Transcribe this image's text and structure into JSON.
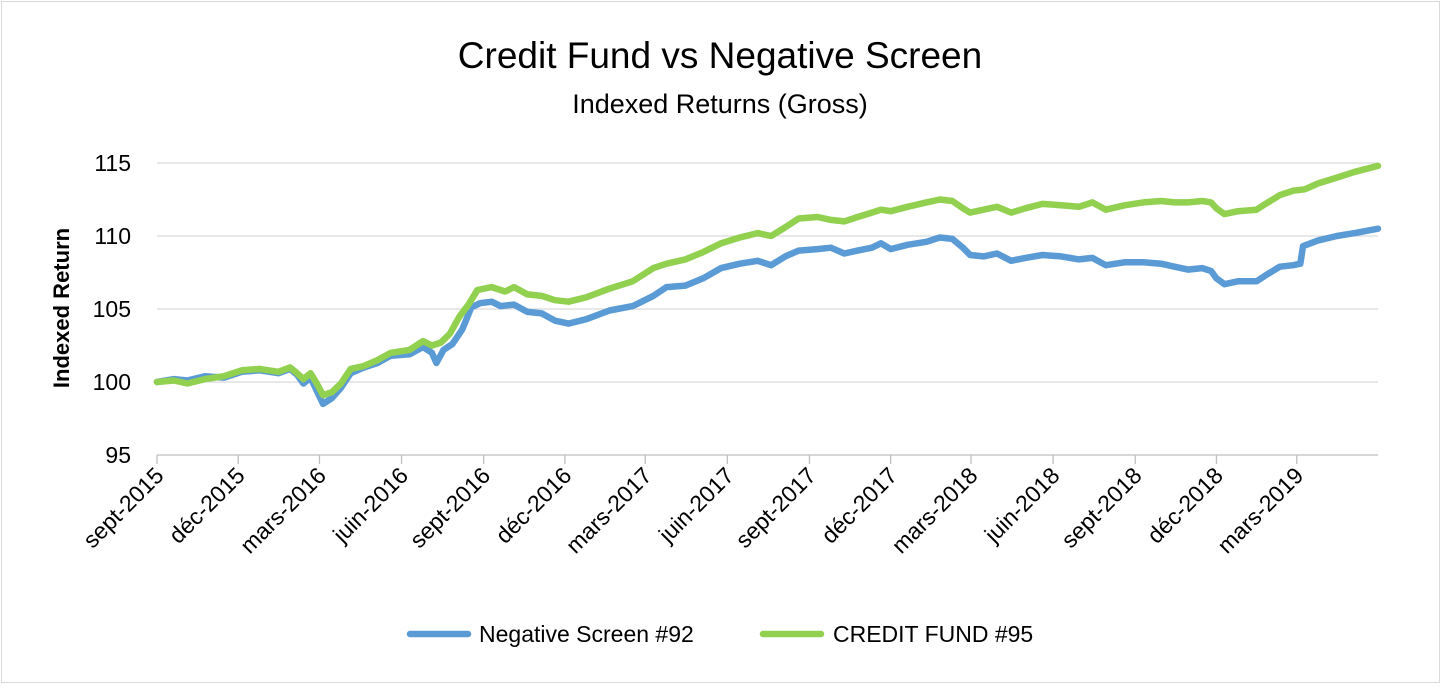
{
  "chart_data": {
    "type": "line",
    "title": "Credit Fund vs Negative Screen",
    "subtitle": "Indexed Returns (Gross)",
    "xlabel": "",
    "ylabel": "Indexed Return",
    "ylim": [
      95,
      115
    ],
    "yticks": [
      95,
      100,
      105,
      110,
      115
    ],
    "xlim": [
      "2015-09-01",
      "2019-05-31"
    ],
    "xticks": [
      {
        "date": "2015-09-01",
        "label": "sept-2015"
      },
      {
        "date": "2015-12-01",
        "label": "déc-2015"
      },
      {
        "date": "2016-03-01",
        "label": "mars-2016"
      },
      {
        "date": "2016-06-01",
        "label": "juin-2016"
      },
      {
        "date": "2016-09-01",
        "label": "sept-2016"
      },
      {
        "date": "2016-12-01",
        "label": "déc-2016"
      },
      {
        "date": "2017-03-01",
        "label": "mars-2017"
      },
      {
        "date": "2017-06-01",
        "label": "juin-2017"
      },
      {
        "date": "2017-09-01",
        "label": "sept-2017"
      },
      {
        "date": "2017-12-01",
        "label": "déc-2017"
      },
      {
        "date": "2018-03-01",
        "label": "mars-2018"
      },
      {
        "date": "2018-06-01",
        "label": "juin-2018"
      },
      {
        "date": "2018-09-01",
        "label": "sept-2018"
      },
      {
        "date": "2018-12-01",
        "label": "déc-2018"
      },
      {
        "date": "2019-03-01",
        "label": "mars-2019"
      }
    ],
    "grid": "horizontal",
    "legend": "bottom",
    "colors": {
      "negative_screen": "#5b9bd5",
      "credit_fund": "#92d050",
      "grid": "#d9d9d9",
      "axis": "#bfbfbf",
      "border": "#d9d9d9"
    },
    "series": [
      {
        "name": "Negative Screen #92",
        "color": "#5b9bd5",
        "points": [
          [
            "2015-09-01",
            100.0
          ],
          [
            "2015-09-20",
            100.2
          ],
          [
            "2015-10-05",
            100.1
          ],
          [
            "2015-10-25",
            100.4
          ],
          [
            "2015-11-15",
            100.3
          ],
          [
            "2015-12-05",
            100.7
          ],
          [
            "2015-12-25",
            100.8
          ],
          [
            "2016-01-15",
            100.6
          ],
          [
            "2016-01-28",
            100.9
          ],
          [
            "2016-02-05",
            100.5
          ],
          [
            "2016-02-12",
            99.9
          ],
          [
            "2016-02-20",
            100.3
          ],
          [
            "2016-02-27",
            99.4
          ],
          [
            "2016-03-05",
            98.5
          ],
          [
            "2016-03-15",
            98.9
          ],
          [
            "2016-03-25",
            99.6
          ],
          [
            "2016-04-05",
            100.6
          ],
          [
            "2016-04-20",
            101.0
          ],
          [
            "2016-05-05",
            101.3
          ],
          [
            "2016-05-20",
            101.8
          ],
          [
            "2016-06-10",
            101.9
          ],
          [
            "2016-06-25",
            102.4
          ],
          [
            "2016-07-05",
            102.0
          ],
          [
            "2016-07-10",
            101.3
          ],
          [
            "2016-07-18",
            102.2
          ],
          [
            "2016-07-28",
            102.6
          ],
          [
            "2016-08-08",
            103.6
          ],
          [
            "2016-08-18",
            105.1
          ],
          [
            "2016-08-28",
            105.4
          ],
          [
            "2016-09-10",
            105.5
          ],
          [
            "2016-09-20",
            105.2
          ],
          [
            "2016-10-05",
            105.3
          ],
          [
            "2016-10-20",
            104.8
          ],
          [
            "2016-11-05",
            104.7
          ],
          [
            "2016-11-20",
            104.2
          ],
          [
            "2016-12-05",
            104.0
          ],
          [
            "2016-12-25",
            104.3
          ],
          [
            "2017-01-20",
            104.9
          ],
          [
            "2017-02-15",
            105.2
          ],
          [
            "2017-03-10",
            105.9
          ],
          [
            "2017-03-25",
            106.5
          ],
          [
            "2017-04-15",
            106.6
          ],
          [
            "2017-05-05",
            107.1
          ],
          [
            "2017-05-25",
            107.8
          ],
          [
            "2017-06-15",
            108.1
          ],
          [
            "2017-07-05",
            108.3
          ],
          [
            "2017-07-20",
            108.0
          ],
          [
            "2017-08-05",
            108.6
          ],
          [
            "2017-08-20",
            109.0
          ],
          [
            "2017-09-10",
            109.1
          ],
          [
            "2017-09-25",
            109.2
          ],
          [
            "2017-10-10",
            108.8
          ],
          [
            "2017-10-25",
            109.0
          ],
          [
            "2017-11-10",
            109.2
          ],
          [
            "2017-11-20",
            109.5
          ],
          [
            "2017-12-01",
            109.1
          ],
          [
            "2017-12-20",
            109.4
          ],
          [
            "2018-01-10",
            109.6
          ],
          [
            "2018-01-25",
            109.9
          ],
          [
            "2018-02-08",
            109.8
          ],
          [
            "2018-02-20",
            109.2
          ],
          [
            "2018-02-28",
            108.7
          ],
          [
            "2018-03-15",
            108.6
          ],
          [
            "2018-03-30",
            108.8
          ],
          [
            "2018-04-15",
            108.3
          ],
          [
            "2018-05-01",
            108.5
          ],
          [
            "2018-05-20",
            108.7
          ],
          [
            "2018-06-10",
            108.6
          ],
          [
            "2018-06-30",
            108.4
          ],
          [
            "2018-07-15",
            108.5
          ],
          [
            "2018-07-30",
            108.0
          ],
          [
            "2018-08-20",
            108.2
          ],
          [
            "2018-09-10",
            108.2
          ],
          [
            "2018-09-30",
            108.1
          ],
          [
            "2018-10-15",
            107.9
          ],
          [
            "2018-10-30",
            107.7
          ],
          [
            "2018-11-15",
            107.8
          ],
          [
            "2018-11-25",
            107.6
          ],
          [
            "2018-12-01",
            107.1
          ],
          [
            "2018-12-10",
            106.7
          ],
          [
            "2018-12-25",
            106.9
          ],
          [
            "2019-01-15",
            106.9
          ],
          [
            "2019-01-25",
            107.3
          ],
          [
            "2019-02-10",
            107.9
          ],
          [
            "2019-02-25",
            108.0
          ],
          [
            "2019-03-05",
            108.1
          ],
          [
            "2019-03-08",
            109.3
          ],
          [
            "2019-03-25",
            109.7
          ],
          [
            "2019-04-15",
            110.0
          ],
          [
            "2019-05-05",
            110.2
          ],
          [
            "2019-05-31",
            110.5
          ]
        ]
      },
      {
        "name": "CREDIT FUND #95",
        "color": "#92d050",
        "points": [
          [
            "2015-09-01",
            100.0
          ],
          [
            "2015-09-20",
            100.1
          ],
          [
            "2015-10-05",
            99.9
          ],
          [
            "2015-10-25",
            100.2
          ],
          [
            "2015-11-15",
            100.4
          ],
          [
            "2015-12-05",
            100.8
          ],
          [
            "2015-12-25",
            100.9
          ],
          [
            "2016-01-15",
            100.7
          ],
          [
            "2016-01-28",
            101.0
          ],
          [
            "2016-02-05",
            100.6
          ],
          [
            "2016-02-12",
            100.2
          ],
          [
            "2016-02-20",
            100.6
          ],
          [
            "2016-02-27",
            99.9
          ],
          [
            "2016-03-05",
            99.1
          ],
          [
            "2016-03-15",
            99.3
          ],
          [
            "2016-03-25",
            99.9
          ],
          [
            "2016-04-05",
            100.9
          ],
          [
            "2016-04-20",
            101.1
          ],
          [
            "2016-05-05",
            101.5
          ],
          [
            "2016-05-20",
            102.0
          ],
          [
            "2016-06-10",
            102.2
          ],
          [
            "2016-06-25",
            102.8
          ],
          [
            "2016-07-05",
            102.5
          ],
          [
            "2016-07-15",
            102.7
          ],
          [
            "2016-07-25",
            103.3
          ],
          [
            "2016-08-05",
            104.5
          ],
          [
            "2016-08-15",
            105.3
          ],
          [
            "2016-08-25",
            106.3
          ],
          [
            "2016-09-10",
            106.5
          ],
          [
            "2016-09-25",
            106.2
          ],
          [
            "2016-10-05",
            106.5
          ],
          [
            "2016-10-20",
            106.0
          ],
          [
            "2016-11-05",
            105.9
          ],
          [
            "2016-11-20",
            105.6
          ],
          [
            "2016-12-05",
            105.5
          ],
          [
            "2016-12-25",
            105.8
          ],
          [
            "2017-01-20",
            106.4
          ],
          [
            "2017-02-15",
            106.9
          ],
          [
            "2017-03-10",
            107.8
          ],
          [
            "2017-03-25",
            108.1
          ],
          [
            "2017-04-15",
            108.4
          ],
          [
            "2017-05-05",
            108.9
          ],
          [
            "2017-05-25",
            109.5
          ],
          [
            "2017-06-15",
            109.9
          ],
          [
            "2017-07-05",
            110.2
          ],
          [
            "2017-07-20",
            110.0
          ],
          [
            "2017-08-05",
            110.6
          ],
          [
            "2017-08-20",
            111.2
          ],
          [
            "2017-09-10",
            111.3
          ],
          [
            "2017-09-25",
            111.1
          ],
          [
            "2017-10-10",
            111.0
          ],
          [
            "2017-10-25",
            111.3
          ],
          [
            "2017-11-10",
            111.6
          ],
          [
            "2017-11-20",
            111.8
          ],
          [
            "2017-12-01",
            111.7
          ],
          [
            "2017-12-20",
            112.0
          ],
          [
            "2018-01-10",
            112.3
          ],
          [
            "2018-01-25",
            112.5
          ],
          [
            "2018-02-08",
            112.4
          ],
          [
            "2018-02-20",
            111.9
          ],
          [
            "2018-02-28",
            111.6
          ],
          [
            "2018-03-15",
            111.8
          ],
          [
            "2018-03-30",
            112.0
          ],
          [
            "2018-04-15",
            111.6
          ],
          [
            "2018-05-01",
            111.9
          ],
          [
            "2018-05-20",
            112.2
          ],
          [
            "2018-06-10",
            112.1
          ],
          [
            "2018-06-30",
            112.0
          ],
          [
            "2018-07-15",
            112.3
          ],
          [
            "2018-07-30",
            111.8
          ],
          [
            "2018-08-20",
            112.1
          ],
          [
            "2018-09-10",
            112.3
          ],
          [
            "2018-09-30",
            112.4
          ],
          [
            "2018-10-15",
            112.3
          ],
          [
            "2018-10-30",
            112.3
          ],
          [
            "2018-11-15",
            112.4
          ],
          [
            "2018-11-25",
            112.3
          ],
          [
            "2018-12-01",
            111.9
          ],
          [
            "2018-12-10",
            111.5
          ],
          [
            "2018-12-25",
            111.7
          ],
          [
            "2019-01-15",
            111.8
          ],
          [
            "2019-01-25",
            112.2
          ],
          [
            "2019-02-10",
            112.8
          ],
          [
            "2019-02-25",
            113.1
          ],
          [
            "2019-03-10",
            113.2
          ],
          [
            "2019-03-25",
            113.6
          ],
          [
            "2019-04-15",
            114.0
          ],
          [
            "2019-05-05",
            114.4
          ],
          [
            "2019-05-31",
            114.8
          ]
        ]
      }
    ]
  }
}
